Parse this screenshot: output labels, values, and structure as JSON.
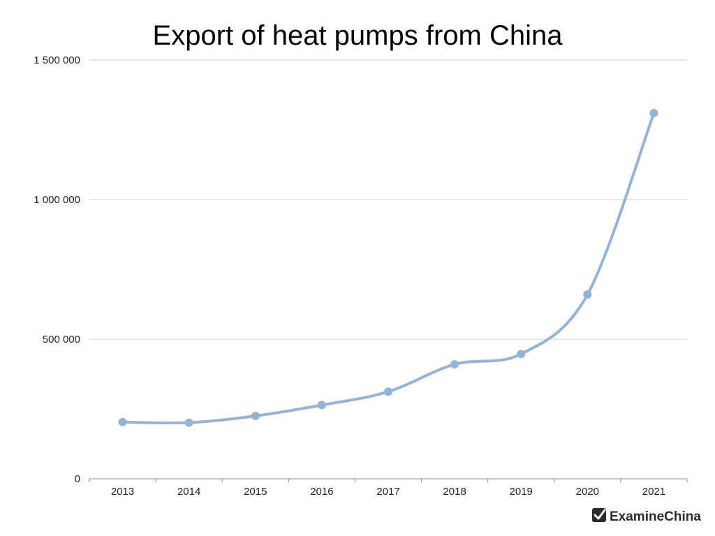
{
  "chart_data": {
    "type": "line",
    "title": "Export of heat pumps from China",
    "xlabel": "",
    "ylabel": "",
    "categories": [
      "2013",
      "2014",
      "2015",
      "2016",
      "2017",
      "2018",
      "2019",
      "2020",
      "2021"
    ],
    "series": [
      {
        "values": [
          203000,
          201000,
          225000,
          264000,
          312000,
          410000,
          447000,
          660000,
          1310000
        ],
        "color": "#95b3d7"
      }
    ],
    "ylim": [
      0,
      1500000
    ],
    "yticks": [
      0,
      500000,
      1000000,
      1500000
    ],
    "ytick_labels": [
      "0",
      "500 000",
      "1 000 000",
      "1 500 000"
    ],
    "grid": "horizontal",
    "smooth": true,
    "markers": true
  },
  "watermark": {
    "text": "ExamineChina",
    "icon": "checkmark-logo-icon"
  }
}
